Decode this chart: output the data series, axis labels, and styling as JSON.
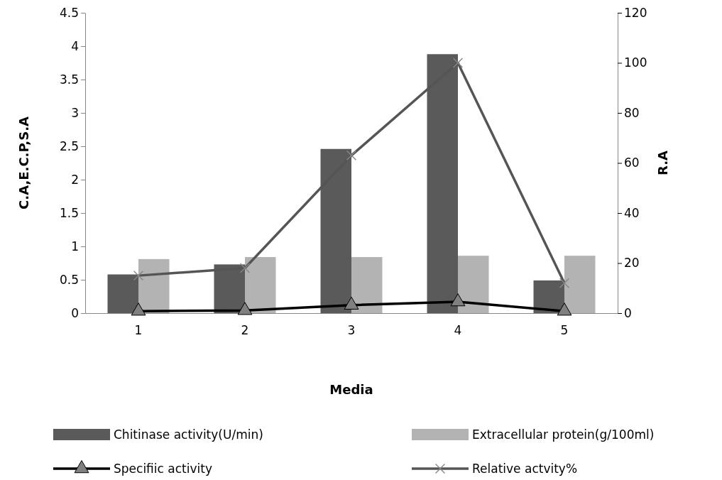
{
  "chart_data": {
    "type": "bar",
    "xlabel": "Media",
    "ylabel": "C.A,E.C.P,S.A",
    "y2label": "R.A",
    "categories": [
      "1",
      "2",
      "3",
      "4",
      "5"
    ],
    "ylim": [
      0,
      4.5
    ],
    "yticks": [
      0,
      0.5,
      1,
      1.5,
      2,
      2.5,
      3,
      3.5,
      4,
      4.5
    ],
    "y2lim": [
      0,
      120
    ],
    "y2ticks": [
      0,
      20,
      40,
      60,
      80,
      100,
      120
    ],
    "grid": false,
    "legend": "bottom",
    "series": [
      {
        "name": "Chitinase activity(U/min)",
        "color": "#5a5a5a",
        "values": [
          0.58,
          0.73,
          2.46,
          3.88,
          0.49
        ]
      },
      {
        "name": "Extracellular protein(g/100ml)",
        "color": "#b3b3b3",
        "values": [
          0.81,
          0.84,
          0.84,
          0.86,
          0.86
        ]
      },
      {
        "name": "Specifiic activity",
        "type": "line",
        "color": "#000000",
        "marker": "triangle",
        "values": [
          0.03,
          0.04,
          0.12,
          0.17,
          0.03
        ]
      },
      {
        "name": "Relative actvity%",
        "type": "line",
        "axis": "y2",
        "color": "#555555",
        "marker": "cross",
        "values": [
          15,
          18,
          63,
          100,
          12
        ]
      }
    ]
  }
}
